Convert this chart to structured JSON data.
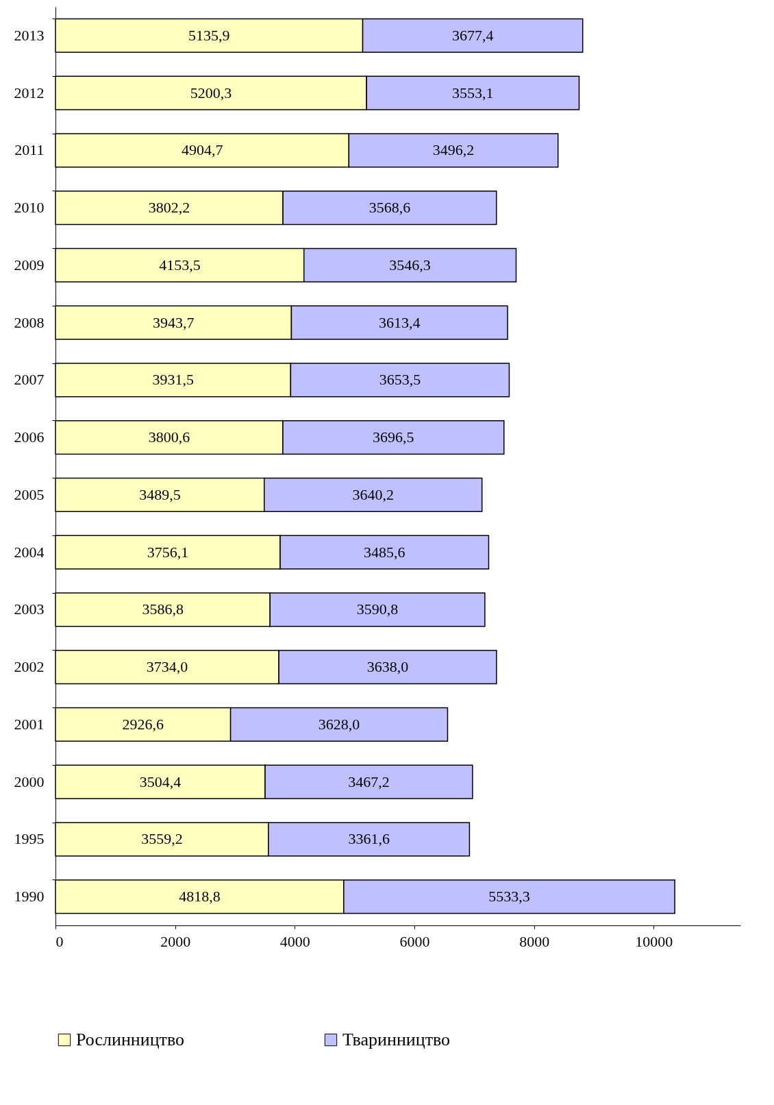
{
  "chart_data": {
    "type": "bar",
    "orientation": "horizontal",
    "stacked": true,
    "legend": "bottom",
    "grid": false,
    "categories": [
      "2013",
      "2012",
      "2011",
      "2010",
      "2009",
      "2008",
      "2007",
      "2006",
      "2005",
      "2004",
      "2003",
      "2002",
      "2001",
      "2000",
      "1995",
      "1990"
    ],
    "series": [
      {
        "name": "Рослинництво",
        "color": "#ffffc0",
        "values": [
          5135.9,
          5200.3,
          4904.7,
          3802.2,
          4153.5,
          3943.7,
          3931.5,
          3800.6,
          3489.5,
          3756.1,
          3586.8,
          3734.0,
          2926.6,
          3504.4,
          3559.2,
          4818.8
        ],
        "value_labels": [
          "5135,9",
          "5200,3",
          "4904,7",
          "3802,2",
          "4153,5",
          "3943,7",
          "3931,5",
          "3800,6",
          "3489,5",
          "3756,1",
          "3586,8",
          "3734,0",
          "2926,6",
          "3504,4",
          "3559,2",
          "4818,8"
        ]
      },
      {
        "name": "Тваринництво",
        "color": "#c0c0ff",
        "values": [
          3677.4,
          3553.1,
          3496.2,
          3568.6,
          3546.3,
          3613.4,
          3653.5,
          3696.5,
          3640.2,
          3485.6,
          3590.8,
          3638.0,
          3628.0,
          3467.2,
          3361.6,
          5533.3
        ],
        "value_labels": [
          "3677,4",
          "3553,1",
          "3496,2",
          "3568,6",
          "3546,3",
          "3613,4",
          "3653,5",
          "3696,5",
          "3640,2",
          "3485,6",
          "3590,8",
          "3638,0",
          "3628,0",
          "3467,2",
          "3361,6",
          "5533,3"
        ]
      }
    ],
    "xlim": [
      0,
      11450
    ],
    "xticks": [
      0,
      2000,
      4000,
      6000,
      8000,
      10000
    ]
  }
}
